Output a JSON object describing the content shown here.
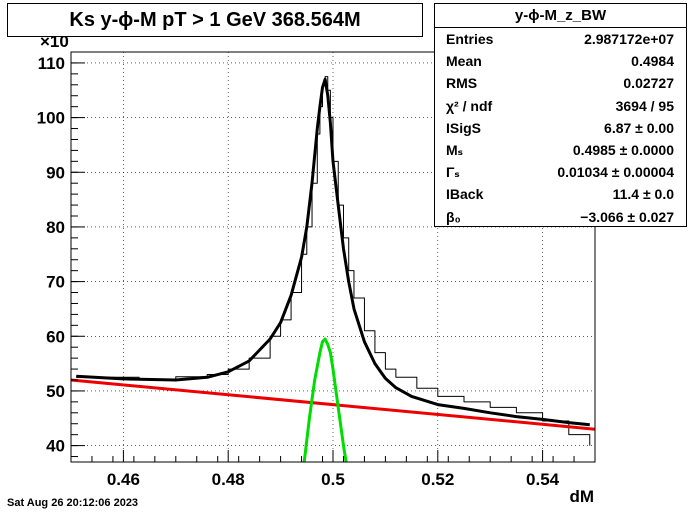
{
  "title": "Ks y-ϕ-M pT > 1 GeV  368.564M",
  "stats": {
    "name": "y-ϕ-M_z_BW",
    "rows": [
      {
        "label": "Entries",
        "value": "2.987172e+07"
      },
      {
        "label": "Mean",
        "value": "0.4984"
      },
      {
        "label": "RMS",
        "value": "0.02727"
      },
      {
        "label": "χ² / ndf",
        "value": "3694 / 95"
      },
      {
        "label": "ISigS",
        "value": "6.87 ± 0.00"
      },
      {
        "label": "Mₛ",
        "value": "0.4985 ± 0.0000"
      },
      {
        "label": "Γₛ",
        "value": "0.01034 ± 0.00004"
      },
      {
        "label": "IBack",
        "value": "11.4 ± 0.0"
      },
      {
        "label": "β₀",
        "value": "−3.066 ± 0.027"
      }
    ]
  },
  "timestamp": "Sat Aug 26 20:12:06 2023",
  "colors": {
    "histogram": "#000000",
    "fit_total": "#000000",
    "background": "#ee0000",
    "signal": "#00dd00"
  },
  "chart_data": {
    "type": "line",
    "xlabel": "dM",
    "ylabel": "",
    "y_multiplier_label": "×10",
    "xlim": [
      0.45,
      0.55
    ],
    "ylim": [
      37,
      112
    ],
    "x_ticks": [
      "0.46",
      "0.48",
      "0.5",
      "0.52",
      "0.54"
    ],
    "y_ticks": [
      "40",
      "50",
      "60",
      "70",
      "80",
      "90",
      "100",
      "110"
    ],
    "grid": true,
    "series": [
      {
        "kind": "histogram",
        "x": [
          0.451,
          0.463,
          0.47,
          0.476,
          0.48,
          0.484,
          0.488,
          0.49,
          0.492,
          0.494,
          0.495,
          0.496,
          0.497,
          0.4975,
          0.498,
          0.4985,
          0.499,
          0.4995,
          0.5,
          0.501,
          0.502,
          0.503,
          0.504,
          0.506,
          0.508,
          0.51,
          0.512,
          0.516,
          0.52,
          0.525,
          0.53,
          0.535,
          0.54,
          0.545,
          0.549
        ],
        "y": [
          52.5,
          52.0,
          52.6,
          53.0,
          54.0,
          56.0,
          60.0,
          63.0,
          68.0,
          75.0,
          80.0,
          88.0,
          97.0,
          102.0,
          106.0,
          107.5,
          105.0,
          100.0,
          92.0,
          84.0,
          78.0,
          72.0,
          67.0,
          61.0,
          57.0,
          54.0,
          52.5,
          50.5,
          49.0,
          48.0,
          47.0,
          46.0,
          44.5,
          42.0,
          40.0
        ]
      },
      {
        "kind": "fit-total",
        "x": [
          0.451,
          0.46,
          0.47,
          0.476,
          0.48,
          0.484,
          0.488,
          0.49,
          0.492,
          0.494,
          0.495,
          0.496,
          0.497,
          0.4975,
          0.498,
          0.4985,
          0.499,
          0.4995,
          0.5,
          0.501,
          0.502,
          0.503,
          0.504,
          0.506,
          0.508,
          0.51,
          0.512,
          0.515,
          0.52,
          0.525,
          0.53,
          0.535,
          0.54,
          0.545,
          0.549
        ],
        "y": [
          52.7,
          52.2,
          52.0,
          52.5,
          53.5,
          55.5,
          59.5,
          62.5,
          67.5,
          74.5,
          80.0,
          88.0,
          98.0,
          102.0,
          105.5,
          107.0,
          104.0,
          99.0,
          92.0,
          84.0,
          76.0,
          70.0,
          65.0,
          59.0,
          55.0,
          52.3,
          50.6,
          49.0,
          47.5,
          46.8,
          46.0,
          45.3,
          44.8,
          44.2,
          43.8
        ]
      },
      {
        "kind": "fit-background",
        "x": [
          0.45,
          0.55
        ],
        "y": [
          52.0,
          43.0
        ]
      },
      {
        "kind": "fit-signal",
        "x": [
          0.4945,
          0.4955,
          0.4965,
          0.4975,
          0.498,
          0.4985,
          0.499,
          0.4995,
          0.5,
          0.501,
          0.502,
          0.5025
        ],
        "y": [
          37.0,
          45.0,
          52.0,
          57.0,
          59.0,
          59.5,
          58.5,
          57.0,
          54.0,
          47.0,
          40.0,
          37.0
        ]
      }
    ]
  }
}
